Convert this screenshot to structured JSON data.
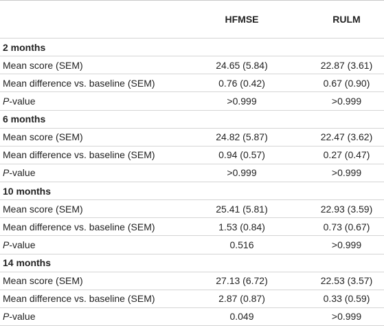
{
  "table": {
    "columns": [
      "HFMSE",
      "RULM"
    ],
    "sections": [
      {
        "heading": "2 months",
        "rows": [
          {
            "label": "Mean score (SEM)",
            "values": [
              "24.65 (5.84)",
              "22.87 (3.61)"
            ]
          },
          {
            "label": "Mean difference vs. baseline (SEM)",
            "values": [
              "0.76 (0.42)",
              "0.67 (0.90)"
            ]
          },
          {
            "label_italic": "P",
            "label": "-value",
            "values": [
              ">0.999",
              ">0.999"
            ]
          }
        ]
      },
      {
        "heading": "6 months",
        "rows": [
          {
            "label": "Mean score (SEM)",
            "values": [
              "24.82 (5.87)",
              "22.47 (3.62)"
            ]
          },
          {
            "label": "Mean difference vs. baseline (SEM)",
            "values": [
              "0.94 (0.57)",
              "0.27 (0.47)"
            ]
          },
          {
            "label_italic": "P",
            "label": "-value",
            "values": [
              ">0.999",
              ">0.999"
            ]
          }
        ]
      },
      {
        "heading": "10 months",
        "rows": [
          {
            "label": "Mean score (SEM)",
            "values": [
              "25.41 (5.81)",
              "22.93 (3.59)"
            ]
          },
          {
            "label": "Mean difference vs. baseline (SEM)",
            "values": [
              "1.53 (0.84)",
              "0.73 (0.67)"
            ]
          },
          {
            "label_italic": "P",
            "label": "-value",
            "values": [
              "0.516",
              ">0.999"
            ]
          }
        ]
      },
      {
        "heading": "14 months",
        "rows": [
          {
            "label": "Mean score (SEM)",
            "values": [
              "27.13 (6.72)",
              "22.53 (3.57)"
            ]
          },
          {
            "label": "Mean difference vs. baseline (SEM)",
            "values": [
              "2.87 (0.87)",
              "0.33 (0.59)"
            ]
          },
          {
            "label_italic": "P",
            "label": "-value",
            "values": [
              "0.049",
              ">0.999"
            ]
          }
        ]
      }
    ]
  }
}
